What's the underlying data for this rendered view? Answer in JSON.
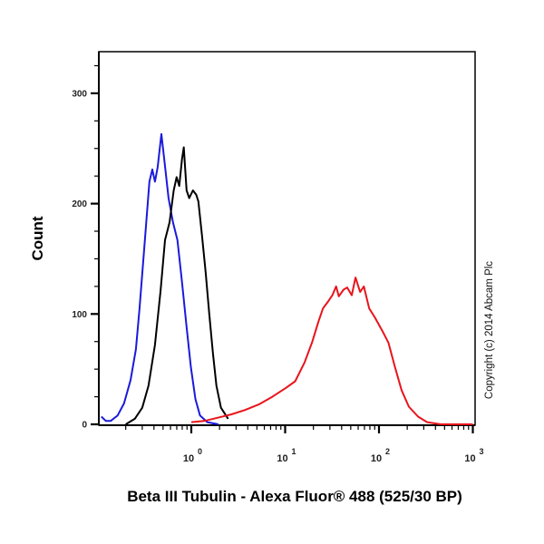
{
  "chart_data": {
    "type": "line",
    "title": "",
    "xlabel": "Beta III Tubulin - Alexa Fluor® 488 (525/30 BP)",
    "ylabel": "Count",
    "xscale": "log",
    "xlim": [
      0.11,
      1000
    ],
    "ylim": [
      0,
      340
    ],
    "x_ticks": [
      {
        "base": "10",
        "exp": "0",
        "value": 1
      },
      {
        "base": "10",
        "exp": "1",
        "value": 10
      },
      {
        "base": "10",
        "exp": "2",
        "value": 100
      },
      {
        "base": "10",
        "exp": "3",
        "value": 1000
      }
    ],
    "y_ticks": [
      "0",
      "100",
      "200",
      "300"
    ],
    "y_tick_values": [
      0,
      100,
      200,
      300
    ],
    "y_minor_step": 25,
    "grid": false,
    "legend": null,
    "annotation": "Copyright (c) 2014 Abcam Plc",
    "series": [
      {
        "name": "Blue",
        "color": "#1a1adb",
        "x": [
          0.11,
          0.123,
          0.138,
          0.164,
          0.192,
          0.225,
          0.257,
          0.281,
          0.32,
          0.358,
          0.384,
          0.41,
          0.438,
          0.48,
          0.52,
          0.572,
          0.638,
          0.712,
          0.794,
          0.888,
          0.99,
          1.105,
          1.237,
          1.48,
          1.94
        ],
        "y": [
          7,
          3,
          3,
          8,
          19,
          40,
          68,
          105,
          167,
          220,
          231,
          220,
          233,
          263,
          237,
          205,
          183,
          167,
          130,
          89,
          52,
          23,
          8,
          2,
          0
        ]
      },
      {
        "name": "Black",
        "color": "#000000",
        "x": [
          0.2,
          0.25,
          0.3,
          0.35,
          0.41,
          0.47,
          0.525,
          0.586,
          0.65,
          0.697,
          0.744,
          0.795,
          0.832,
          0.89,
          0.95,
          1.04,
          1.13,
          1.19,
          1.3,
          1.42,
          1.55,
          1.7,
          1.85,
          2.07,
          2.47
        ],
        "y": [
          0,
          5,
          15,
          35,
          72,
          121,
          167,
          183,
          212,
          224,
          216,
          240,
          251,
          212,
          205,
          212,
          208,
          202,
          171,
          138,
          101,
          64,
          35,
          15,
          5
        ]
      },
      {
        "name": "Red",
        "color": "#e8141b",
        "x": [
          1,
          1.37,
          1.92,
          2.68,
          3.74,
          5.23,
          7.3,
          10.2,
          12.8,
          16.1,
          19.3,
          22.6,
          25.3,
          28.5,
          31.9,
          34.9,
          37.3,
          41.9,
          45.8,
          51.3,
          56.2,
          63,
          69,
          78.7,
          90.2,
          108,
          126,
          148,
          174,
          208,
          261,
          326,
          456,
          1000
        ],
        "y": [
          2,
          3,
          6,
          9,
          13,
          18,
          25,
          33,
          39,
          56,
          74,
          93,
          105,
          111,
          117,
          125,
          116,
          122,
          124,
          117,
          133,
          120,
          125,
          105,
          97,
          85,
          74,
          52,
          31,
          16,
          7,
          2,
          0,
          0
        ]
      }
    ]
  }
}
